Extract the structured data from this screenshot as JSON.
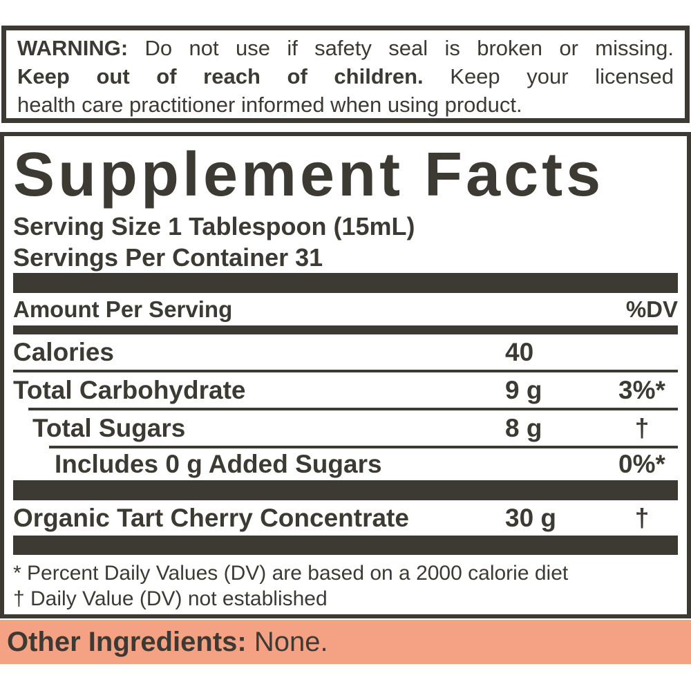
{
  "colors": {
    "ink": "#3c3a33",
    "salmon": "#f5a284",
    "paper": "#ffffff"
  },
  "warning": {
    "line1_bold": "WARNING:",
    "line1_rest": "Do not use if safety seal is broken or missing.",
    "line2_bold": "Keep out of reach of children.",
    "line2_rest": "Keep your licensed",
    "line3": "health care practitioner informed when using product."
  },
  "panel": {
    "title": "Supplement Facts",
    "serving_size": "Serving Size 1 Tablespoon (15mL)",
    "servings_per_container": "Servings Per Container 31",
    "header_left": "Amount Per Serving",
    "header_right": "%DV",
    "rows": [
      {
        "name": "Calories",
        "amount": "40",
        "dv": ""
      },
      {
        "name": "Total Carbohydrate",
        "amount": "9 g",
        "dv": "3%*"
      },
      {
        "name": "Total Sugars",
        "amount": "8 g",
        "dv": "†"
      },
      {
        "name": "Includes 0 g Added Sugars",
        "amount": "",
        "dv": "0%*"
      }
    ],
    "ingredient_row": {
      "name": "Organic Tart Cherry Concentrate",
      "amount": "30 g",
      "dv": "†"
    },
    "footnotes": [
      "* Percent Daily Values (DV) are based on a 2000 calorie diet",
      "† Daily Value (DV) not established"
    ]
  },
  "other_ingredients": {
    "label": "Other Ingredients:",
    "value": "None."
  }
}
